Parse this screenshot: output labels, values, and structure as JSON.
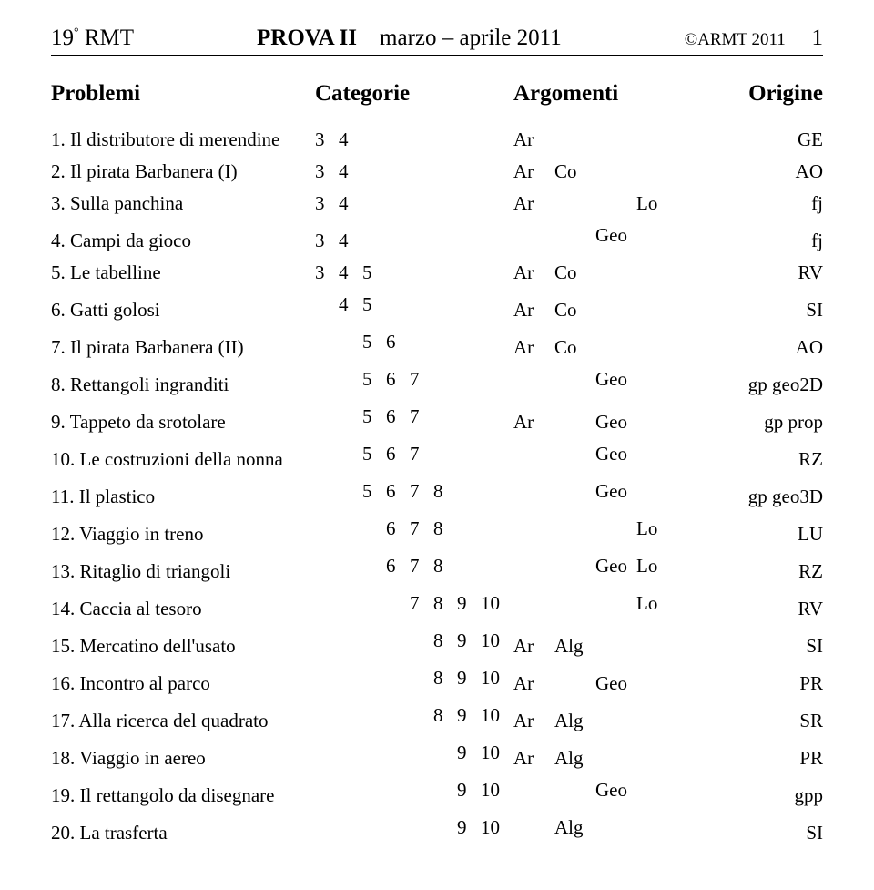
{
  "header": {
    "left_prefix_num": "19",
    "left_sup": "°",
    "left_label": "RMT",
    "center_bold": "PROVA II",
    "center_rest": "marzo – aprile 2011",
    "right_copy": "©ARMT 2011",
    "page_num": "1"
  },
  "section_heads": {
    "problemi": "Problemi",
    "categorie": "Categorie",
    "argomenti": "Argomenti",
    "origine": "Origine"
  },
  "cat_slots": [
    "3",
    "4",
    "5",
    "6",
    "7",
    "8",
    "9",
    "10"
  ],
  "arg_slots": [
    "Ar",
    "Alg",
    "Geo",
    "Lo"
  ],
  "rows": [
    {
      "name": "1. Il distributore di merendine",
      "cats": [
        "3",
        "4"
      ],
      "args": [
        "Ar"
      ],
      "origin": "GE"
    },
    {
      "name": "2. Il pirata Barbanera (I)",
      "cats": [
        "3",
        "4"
      ],
      "args": [
        "Ar",
        "Co"
      ],
      "origin": "AO"
    },
    {
      "name": "3. Sulla panchina",
      "cats": [
        "3",
        "4"
      ],
      "args": [
        "Ar",
        "Lo"
      ],
      "origin": "fj"
    },
    {
      "name": "4. Campi da gioco",
      "cats": [
        "3",
        "4"
      ],
      "args": [
        "Geo"
      ],
      "origin": "fj"
    },
    {
      "name": "5. Le tabelline",
      "cats": [
        "3",
        "4",
        "5"
      ],
      "args": [
        "Ar",
        "Co"
      ],
      "origin": "RV"
    },
    {
      "name": "6. Gatti golosi",
      "cats": [
        "4",
        "5"
      ],
      "args": [
        "Ar",
        "Co"
      ],
      "origin": "SI"
    },
    {
      "name": "7. Il pirata Barbanera (II)",
      "cats": [
        "5",
        "6"
      ],
      "args": [
        "Ar",
        "Co"
      ],
      "origin": "AO"
    },
    {
      "name": "8. Rettangoli ingranditi",
      "cats": [
        "5",
        "6",
        "7"
      ],
      "args": [
        "Geo"
      ],
      "origin": "gp geo2D"
    },
    {
      "name": "9. Tappeto da srotolare",
      "cats": [
        "5",
        "6",
        "7"
      ],
      "args": [
        "Ar",
        "Geo"
      ],
      "origin": "gp prop"
    },
    {
      "name": "10. Le costruzioni della nonna",
      "cats": [
        "5",
        "6",
        "7"
      ],
      "args": [
        "Geo"
      ],
      "origin": "RZ"
    },
    {
      "name": "11. Il plastico",
      "cats": [
        "5",
        "6",
        "7",
        "8"
      ],
      "args": [
        "Geo"
      ],
      "origin": "gp geo3D"
    },
    {
      "name": "12. Viaggio in treno",
      "cats": [
        "6",
        "7",
        "8"
      ],
      "args": [
        "Lo"
      ],
      "origin": "LU"
    },
    {
      "name": "13. Ritaglio di triangoli",
      "cats": [
        "6",
        "7",
        "8"
      ],
      "args": [
        "Geo",
        "Lo"
      ],
      "origin": "RZ"
    },
    {
      "name": "14. Caccia al tesoro",
      "cats": [
        "7",
        "8",
        "9",
        "10"
      ],
      "args": [
        "Lo"
      ],
      "origin": "RV"
    },
    {
      "name": "15. Mercatino dell'usato",
      "cats": [
        "8",
        "9",
        "10"
      ],
      "args": [
        "Ar",
        "Alg"
      ],
      "origin": "SI"
    },
    {
      "name": "16. Incontro al parco",
      "cats": [
        "8",
        "9",
        "10"
      ],
      "args": [
        "Ar",
        "Geo"
      ],
      "origin": "PR"
    },
    {
      "name": "17. Alla ricerca del quadrato",
      "cats": [
        "8",
        "9",
        "10"
      ],
      "args": [
        "Ar",
        "Alg"
      ],
      "origin": "SR"
    },
    {
      "name": "18. Viaggio in aereo",
      "cats": [
        "9",
        "10"
      ],
      "args": [
        "Ar",
        "Alg"
      ],
      "origin": "PR"
    },
    {
      "name": "19. Il rettangolo da disegnare",
      "cats": [
        "9",
        "10"
      ],
      "args": [
        "Geo"
      ],
      "origin": "gpp"
    },
    {
      "name": "20. La trasferta",
      "cats": [
        "9",
        "10"
      ],
      "args": [
        "Alg"
      ],
      "origin": "SI"
    }
  ]
}
